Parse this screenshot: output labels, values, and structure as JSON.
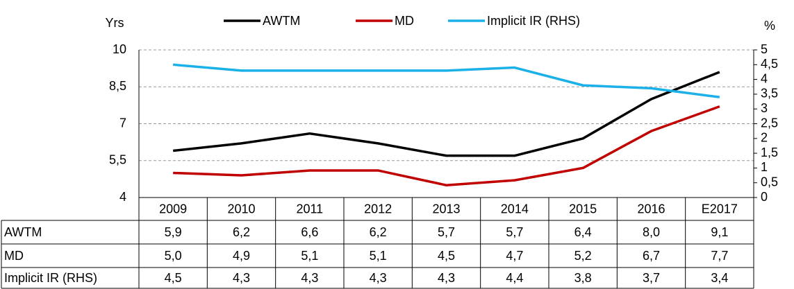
{
  "chart_data": {
    "type": "line",
    "y_label": "Yrs",
    "y2_label": "%",
    "categories": [
      "2009",
      "2010",
      "2011",
      "2012",
      "2013",
      "2014",
      "2015",
      "2016",
      "E2017"
    ],
    "series": [
      {
        "name": "AWTM",
        "color": "#000000",
        "values": [
          5.9,
          6.2,
          6.6,
          6.2,
          5.7,
          5.7,
          6.4,
          8.0,
          9.1
        ],
        "value_labels": [
          "5,9",
          "6,2",
          "6,6",
          "6,2",
          "5,7",
          "5,7",
          "6,4",
          "8,0",
          "9,1"
        ]
      },
      {
        "name": "MD",
        "color": "#c00000",
        "values": [
          5.0,
          4.9,
          5.1,
          5.1,
          4.5,
          4.7,
          5.2,
          6.7,
          7.7
        ],
        "value_labels": [
          "5,0",
          "4,9",
          "5,1",
          "5,1",
          "4,5",
          "4,7",
          "5,2",
          "6,7",
          "7,7"
        ]
      },
      {
        "name": "Implicit IR (RHS)",
        "color": "#1ab0e8",
        "axis": "y2",
        "values": [
          4.5,
          4.3,
          4.3,
          4.3,
          4.3,
          4.4,
          3.8,
          3.7,
          3.4
        ],
        "value_labels": [
          "4,5",
          "4,3",
          "4,3",
          "4,3",
          "4,3",
          "4,4",
          "3,8",
          "3,7",
          "3,4"
        ]
      }
    ],
    "ylim": [
      4,
      10
    ],
    "yticks": [
      4,
      {
        "value": 5.5,
        "label": "5,5"
      },
      7,
      {
        "value": 8.5,
        "label": "8,5"
      },
      10
    ],
    "y2lim": [
      0,
      5
    ],
    "y2ticks": [
      0,
      {
        "value": 0.5,
        "label": "0,5"
      },
      1,
      {
        "value": 1.5,
        "label": "1,5"
      },
      2,
      {
        "value": 2.5,
        "label": "2,5"
      },
      3,
      {
        "value": 3.5,
        "label": "3,5"
      },
      4,
      {
        "value": 4.5,
        "label": "4,5"
      },
      5
    ],
    "grid": true,
    "legend": "top"
  }
}
